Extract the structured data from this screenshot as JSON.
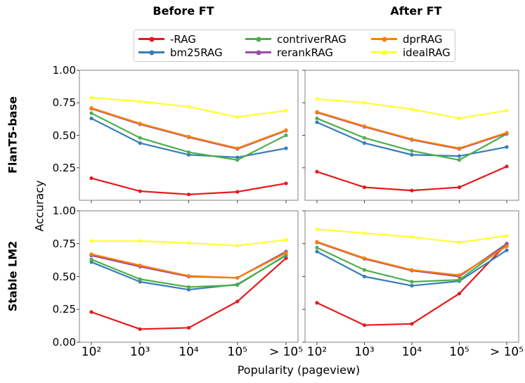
{
  "titles": {
    "before": "Before FT",
    "after": "After FT"
  },
  "row_labels": {
    "top": "FlanT5-base",
    "bottom": "Stable LM2"
  },
  "axis": {
    "ylabel": "Accuracy",
    "xlabel": "Popularity (pageview)"
  },
  "palette": {
    "rag": "#e41a1c",
    "bm25": "#377eb8",
    "contriver": "#4daf4a",
    "rerank": "#984ea3",
    "dpr": "#ff7f00",
    "ideal": "#ffff33",
    "spine": "#808080",
    "tick": "#444444"
  },
  "legend": {
    "items": [
      {
        "label": "-RAG",
        "color": "#e41a1c"
      },
      {
        "label": "bm25RAG",
        "color": "#377eb8"
      },
      {
        "label": "contriverRAG",
        "color": "#4daf4a"
      },
      {
        "label": "rerankRAG",
        "color": "#984ea3"
      },
      {
        "label": "dprRAG",
        "color": "#ff7f00"
      },
      {
        "label": "idealRAG",
        "color": "#ffff33"
      }
    ]
  },
  "chart_data": [
    {
      "type": "line",
      "row": "FlanT5-base",
      "col": "Before FT",
      "x_categories": [
        "10²",
        "10³",
        "10⁴",
        "10⁵",
        "> 10⁵"
      ],
      "ylim": [
        0,
        1
      ],
      "ytick_values": [
        1.0,
        0.75,
        0.5,
        0.25
      ],
      "ytick_labels": [
        "1.00",
        "0.75",
        "0.50",
        "0.25"
      ],
      "grid": false,
      "show_xtick_labels": false,
      "show_ytick_labels": true,
      "series": [
        {
          "name": "-RAG",
          "color": "#e41a1c",
          "values": [
            0.17,
            0.07,
            0.045,
            0.065,
            0.13
          ]
        },
        {
          "name": "bm25RAG",
          "color": "#377eb8",
          "values": [
            0.63,
            0.44,
            0.35,
            0.33,
            0.4
          ]
        },
        {
          "name": "contriverRAG",
          "color": "#4daf4a",
          "values": [
            0.67,
            0.48,
            0.37,
            0.31,
            0.5
          ]
        },
        {
          "name": "rerankRAG",
          "color": "#984ea3",
          "values": [
            0.705,
            0.585,
            0.485,
            0.395,
            0.535
          ]
        },
        {
          "name": "dprRAG",
          "color": "#ff7f00",
          "values": [
            0.71,
            0.59,
            0.49,
            0.4,
            0.54
          ]
        },
        {
          "name": "idealRAG",
          "color": "#ffff33",
          "values": [
            0.79,
            0.76,
            0.72,
            0.64,
            0.69
          ]
        }
      ]
    },
    {
      "type": "line",
      "row": "FlanT5-base",
      "col": "After FT",
      "x_categories": [
        "10²",
        "10³",
        "10⁴",
        "10⁵",
        "> 10⁵"
      ],
      "ylim": [
        0,
        1
      ],
      "ytick_values": [
        1.0,
        0.75,
        0.5,
        0.25
      ],
      "ytick_labels": [
        "1.00",
        "0.75",
        "0.50",
        "0.25"
      ],
      "grid": false,
      "show_xtick_labels": false,
      "show_ytick_labels": false,
      "series": [
        {
          "name": "-RAG",
          "color": "#e41a1c",
          "values": [
            0.22,
            0.1,
            0.075,
            0.1,
            0.26
          ]
        },
        {
          "name": "bm25RAG",
          "color": "#377eb8",
          "values": [
            0.6,
            0.44,
            0.35,
            0.34,
            0.41
          ]
        },
        {
          "name": "contriverRAG",
          "color": "#4daf4a",
          "values": [
            0.63,
            0.48,
            0.38,
            0.31,
            0.51
          ]
        },
        {
          "name": "rerankRAG",
          "color": "#984ea3",
          "values": [
            0.675,
            0.565,
            0.465,
            0.395,
            0.515
          ]
        },
        {
          "name": "dprRAG",
          "color": "#ff7f00",
          "values": [
            0.68,
            0.57,
            0.47,
            0.4,
            0.52
          ]
        },
        {
          "name": "idealRAG",
          "color": "#ffff33",
          "values": [
            0.78,
            0.75,
            0.7,
            0.63,
            0.69
          ]
        }
      ]
    },
    {
      "type": "line",
      "row": "Stable LM2",
      "col": "Before FT",
      "x_categories": [
        "10²",
        "10³",
        "10⁴",
        "10⁵",
        "> 10⁵"
      ],
      "ylim": [
        0,
        1
      ],
      "ytick_values": [
        1.0,
        0.75,
        0.5,
        0.25,
        0.0
      ],
      "ytick_labels": [
        "1.00",
        "0.75",
        "0.50",
        "0.25",
        "0.00"
      ],
      "grid": false,
      "show_xtick_labels": true,
      "show_ytick_labels": true,
      "series": [
        {
          "name": "-RAG",
          "color": "#e41a1c",
          "values": [
            0.23,
            0.1,
            0.11,
            0.31,
            0.64
          ]
        },
        {
          "name": "bm25RAG",
          "color": "#377eb8",
          "values": [
            0.61,
            0.46,
            0.4,
            0.44,
            0.66
          ]
        },
        {
          "name": "contriverRAG",
          "color": "#4daf4a",
          "values": [
            0.63,
            0.48,
            0.42,
            0.435,
            0.665
          ]
        },
        {
          "name": "rerankRAG",
          "color": "#984ea3",
          "values": [
            0.66,
            0.575,
            0.5,
            0.49,
            0.69
          ]
        },
        {
          "name": "dprRAG",
          "color": "#ff7f00",
          "values": [
            0.67,
            0.585,
            0.505,
            0.49,
            0.68
          ]
        },
        {
          "name": "idealRAG",
          "color": "#ffff33",
          "values": [
            0.77,
            0.77,
            0.755,
            0.735,
            0.78
          ]
        }
      ]
    },
    {
      "type": "line",
      "row": "Stable LM2",
      "col": "After FT",
      "x_categories": [
        "10²",
        "10³",
        "10⁴",
        "10⁵",
        "> 10⁵"
      ],
      "ylim": [
        0,
        1
      ],
      "ytick_values": [
        1.0,
        0.75,
        0.5,
        0.25,
        0.0
      ],
      "ytick_labels": [
        "1.00",
        "0.75",
        "0.50",
        "0.25",
        "0.00"
      ],
      "grid": false,
      "show_xtick_labels": true,
      "show_ytick_labels": false,
      "series": [
        {
          "name": "-RAG",
          "color": "#e41a1c",
          "values": [
            0.3,
            0.13,
            0.14,
            0.37,
            0.75
          ]
        },
        {
          "name": "bm25RAG",
          "color": "#377eb8",
          "values": [
            0.69,
            0.5,
            0.43,
            0.465,
            0.7
          ]
        },
        {
          "name": "contriverRAG",
          "color": "#4daf4a",
          "values": [
            0.72,
            0.55,
            0.46,
            0.475,
            0.74
          ]
        },
        {
          "name": "rerankRAG",
          "color": "#984ea3",
          "values": [
            0.76,
            0.635,
            0.545,
            0.5,
            0.75
          ]
        },
        {
          "name": "dprRAG",
          "color": "#ff7f00",
          "values": [
            0.765,
            0.64,
            0.55,
            0.51,
            0.73
          ]
        },
        {
          "name": "idealRAG",
          "color": "#ffff33",
          "values": [
            0.86,
            0.83,
            0.8,
            0.76,
            0.81
          ]
        }
      ]
    }
  ]
}
